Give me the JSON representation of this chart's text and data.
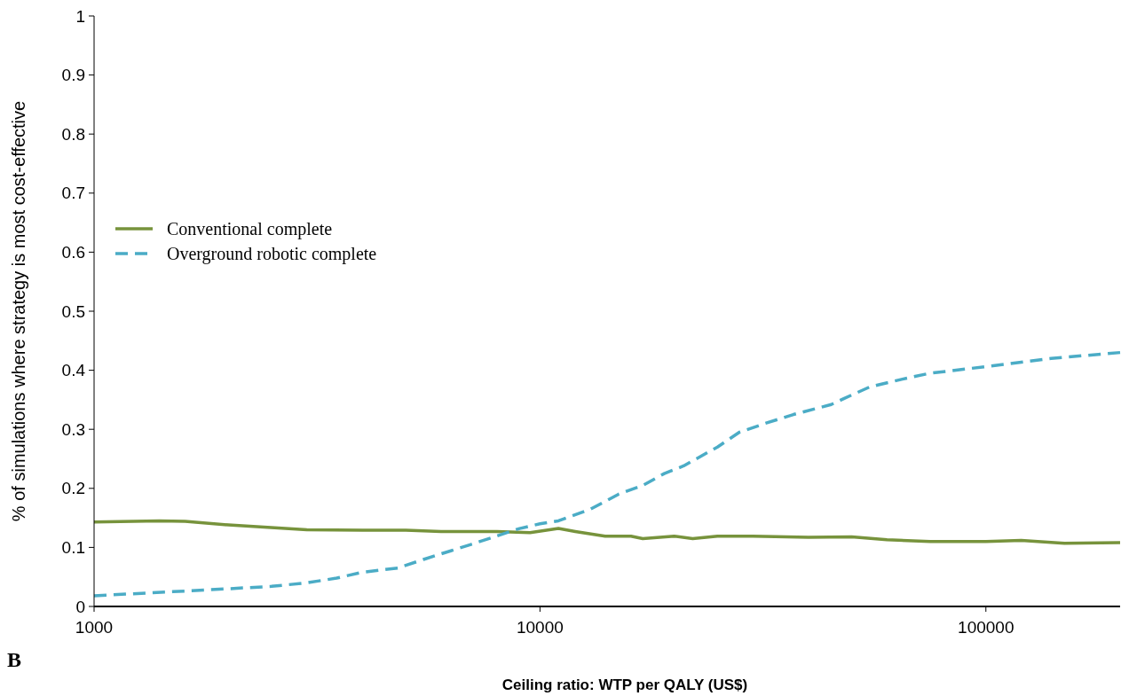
{
  "chart_data": {
    "type": "line",
    "xlabel": "Ceiling ratio: WTP per QALY (US$)",
    "ylabel": "% of simulations where strategy is most cost-effective",
    "annotations": [
      "B"
    ],
    "log": "x",
    "xlim": [
      1000,
      200000
    ],
    "xticks": [
      1000,
      10000,
      100000
    ],
    "ylim": [
      0,
      1
    ],
    "yticks": [
      0,
      0.1,
      0.2,
      0.3,
      0.4,
      0.5,
      0.6,
      0.7,
      0.8,
      0.9,
      1
    ],
    "legend": "left",
    "grid": false,
    "series": [
      {
        "name": "Conventional complete",
        "color": "#77933c",
        "line_style": "solid",
        "x": [
          1000,
          1400,
          1600,
          2000,
          3000,
          4000,
          5000,
          6000,
          8000,
          9500,
          11000,
          12000,
          14000,
          16000,
          17000,
          20000,
          22000,
          25000,
          30000,
          40000,
          50000,
          60000,
          75000,
          100000,
          120000,
          150000,
          200000
        ],
        "values": [
          0.143,
          0.145,
          0.144,
          0.138,
          0.13,
          0.129,
          0.129,
          0.127,
          0.127,
          0.125,
          0.132,
          0.127,
          0.119,
          0.119,
          0.115,
          0.119,
          0.115,
          0.119,
          0.119,
          0.117,
          0.118,
          0.113,
          0.11,
          0.11,
          0.112,
          0.107,
          0.108
        ]
      },
      {
        "name": "Overground robotic complete",
        "color": "#4bacc6",
        "line_style": "dashed",
        "x": [
          1000,
          1500,
          2000,
          2500,
          3000,
          3500,
          4000,
          4800,
          5500,
          7000,
          9000,
          10000,
          11000,
          13000,
          15000,
          17000,
          19000,
          21000,
          25000,
          28000,
          32000,
          37000,
          45000,
          48000,
          55000,
          65000,
          75000,
          90000,
          110000,
          140000,
          200000
        ],
        "values": [
          0.018,
          0.025,
          0.03,
          0.034,
          0.04,
          0.048,
          0.058,
          0.065,
          0.08,
          0.105,
          0.132,
          0.14,
          0.145,
          0.165,
          0.19,
          0.205,
          0.225,
          0.238,
          0.27,
          0.295,
          0.31,
          0.325,
          0.342,
          0.352,
          0.372,
          0.385,
          0.395,
          0.402,
          0.41,
          0.42,
          0.43
        ]
      }
    ]
  }
}
